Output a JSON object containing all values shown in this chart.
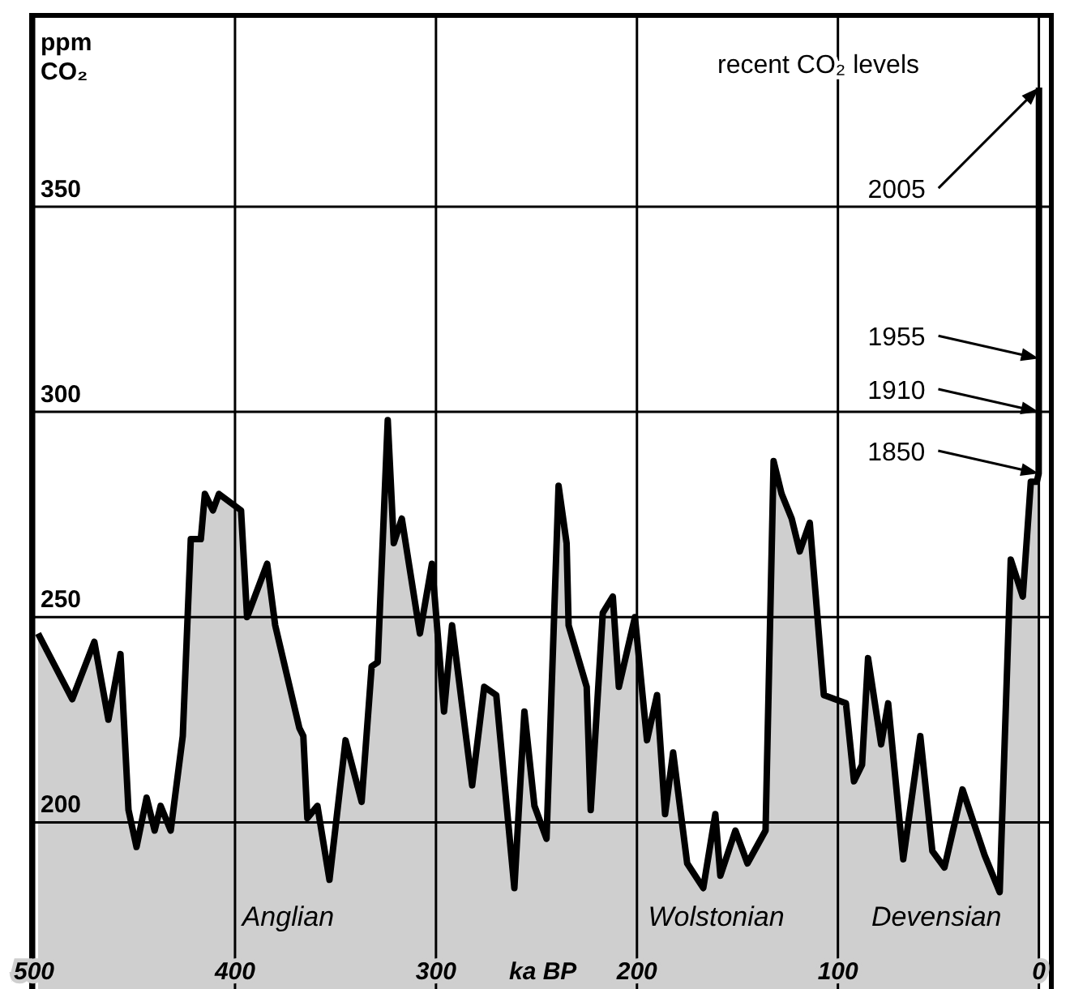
{
  "chart_data": {
    "type": "area",
    "xlabel": "ka BP",
    "ylabel": "ppm CO₂",
    "x": [
      498,
      481,
      470,
      463,
      457,
      453,
      449,
      444,
      440,
      437,
      432,
      426,
      422,
      417,
      415,
      411,
      408,
      397,
      394,
      384,
      380,
      368,
      366,
      364,
      359,
      353,
      345,
      337,
      332,
      329,
      324,
      321,
      317,
      308,
      302,
      296,
      292,
      282,
      276,
      270,
      261,
      256,
      251,
      245,
      239,
      235,
      234,
      225,
      223,
      217,
      212,
      209,
      201,
      195,
      190,
      186,
      182,
      175,
      167,
      161,
      158.5,
      151,
      145,
      136,
      132,
      128,
      123,
      119,
      114,
      107,
      96,
      92,
      88,
      85,
      78.5,
      75,
      67.5,
      59,
      53,
      47,
      38,
      27,
      19.5,
      14,
      8,
      4,
      1,
      0.1,
      0.04,
      -0.005,
      -0.055
    ],
    "series": [
      {
        "color": "#000000",
        "values": [
          246,
          230,
          244,
          225,
          241,
          203,
          194,
          206,
          198,
          204,
          198,
          221,
          269,
          269,
          280,
          276,
          280,
          276,
          250,
          263,
          248,
          223,
          221,
          201,
          204,
          186,
          220,
          205,
          238,
          239,
          298,
          268,
          274,
          246,
          263,
          227,
          248,
          209,
          233,
          231,
          184,
          227,
          204,
          196,
          282,
          268,
          248,
          233,
          203,
          251,
          255,
          233,
          250,
          220,
          231,
          202,
          217,
          190,
          184,
          202,
          187,
          198,
          190,
          198,
          288,
          280,
          274,
          266,
          273,
          231,
          229,
          210,
          214,
          240,
          219,
          229,
          191,
          221,
          193,
          189,
          208,
          192,
          183,
          264,
          255,
          283,
          283,
          285,
          300,
          313,
          379
        ]
      }
    ],
    "xlim": [
      500,
      -5
    ],
    "xticks": [
      500,
      400,
      300,
      200,
      100,
      0
    ],
    "ylim": [
      159,
      396
    ],
    "yticks": [
      200,
      250,
      300,
      350
    ],
    "grid": true,
    "annotations": [
      "recent CO₂ levels",
      "Anglian",
      "Wolstonian",
      "Devensian",
      {
        "text": "1850",
        "x": 0.1,
        "y": 285
      },
      {
        "text": "1910",
        "x": 0.04,
        "y": 300
      },
      {
        "text": "1955",
        "x": -0.005,
        "y": 313
      },
      {
        "text": "2005",
        "x": -0.055,
        "y": 379
      }
    ]
  }
}
